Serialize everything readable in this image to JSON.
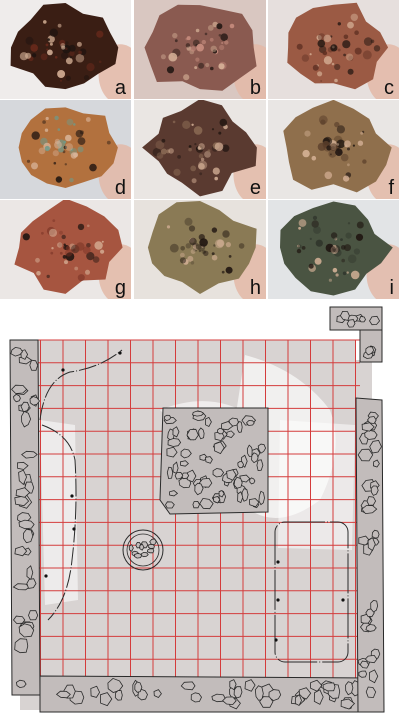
{
  "figure": {
    "photos": [
      {
        "id": "a",
        "label": "a",
        "rock": "#3a1e14",
        "accent": "#6b2a1c",
        "bg": "#efeceb"
      },
      {
        "id": "b",
        "label": "b",
        "rock": "#8a5a50",
        "accent": "#c98e80",
        "bg": "#d9c7c1"
      },
      {
        "id": "c",
        "label": "c",
        "rock": "#9b5a44",
        "accent": "#5e2f22",
        "bg": "#e6dfdd"
      },
      {
        "id": "d",
        "label": "d",
        "rock": "#b2713e",
        "accent": "#6f9a8a",
        "bg": "#d6d8dc"
      },
      {
        "id": "e",
        "label": "e",
        "rock": "#5a3a30",
        "accent": "#8b6b55",
        "bg": "#eae6e3"
      },
      {
        "id": "f",
        "label": "f",
        "rock": "#8f6f4c",
        "accent": "#5a3e2a",
        "bg": "#e9e6e4"
      },
      {
        "id": "g",
        "label": "g",
        "rock": "#a65540",
        "accent": "#7b3426",
        "bg": "#ebe7e5"
      },
      {
        "id": "h",
        "label": "h",
        "rock": "#8a7a55",
        "accent": "#4b3f2c",
        "bg": "#e7e2dd"
      },
      {
        "id": "i",
        "label": "i",
        "rock": "#4a5442",
        "accent": "#2f352b",
        "bg": "#e2e4e6"
      }
    ],
    "plan": {
      "grid_color": "#d43c3c",
      "floor_color": "#d8d3d2",
      "stone_fill": "#c2bcbb",
      "stone_stroke": "#2a2a2a",
      "cut_color": "#ffffff"
    }
  }
}
